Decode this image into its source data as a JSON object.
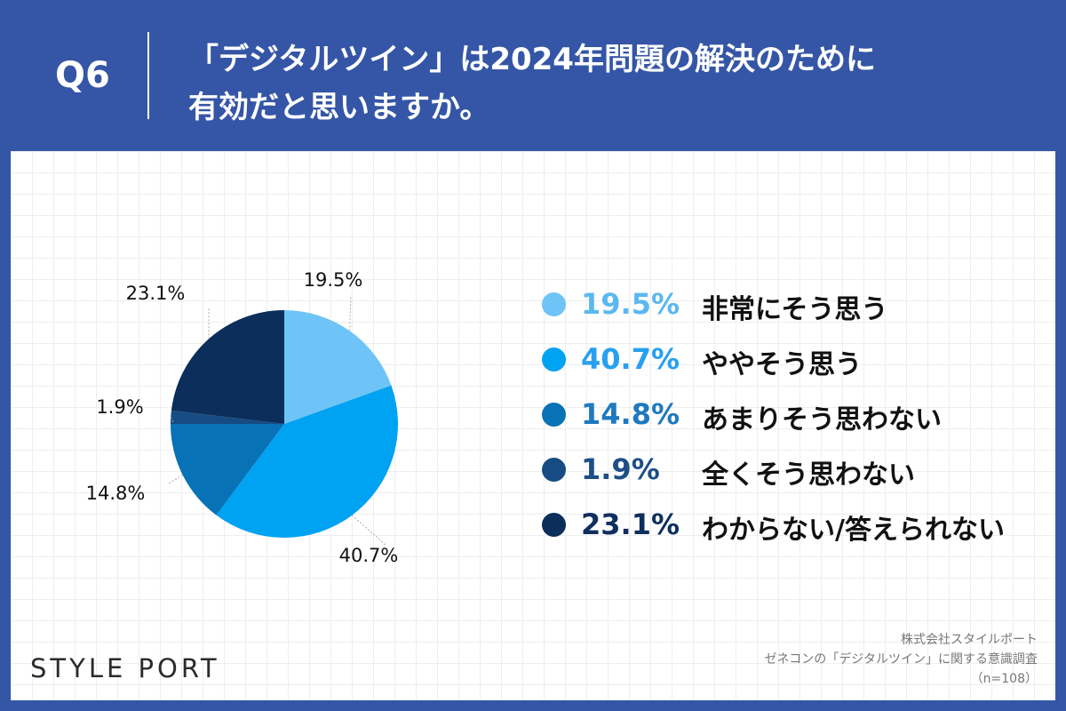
{
  "header": {
    "q_label": "Q6",
    "question_lines": [
      "「デジタルツイン」は2024年問題の解決のために",
      "有効だと思いますか。"
    ]
  },
  "colors": {
    "background": "#3556a6",
    "panel": "#ffffff"
  },
  "chart_data": {
    "type": "pie",
    "title": "",
    "slices": [
      {
        "label": "非常にそう思う",
        "value": 19.5,
        "display": "19.5%",
        "color": "#6ec4f7",
        "text_color": "#5bb8ef"
      },
      {
        "label": "ややそう思う",
        "value": 40.7,
        "display": "40.7%",
        "color": "#00a2f2",
        "text_color": "#27a0f0"
      },
      {
        "label": "あまりそう思わない",
        "value": 14.8,
        "display": "14.8%",
        "color": "#0772b6",
        "text_color": "#1f79bf"
      },
      {
        "label": "全くそう思わない",
        "value": 1.9,
        "display": "1.9%",
        "color": "#164c83",
        "text_color": "#1d4f86"
      },
      {
        "label": "わからない/答えられない",
        "value": 23.1,
        "display": "23.1%",
        "color": "#0b2e5a",
        "text_color": "#0f2f5e"
      }
    ],
    "start_angle": "12 o'clock",
    "direction": "clockwise",
    "legend_position": "right"
  },
  "branding": {
    "logo": "STYLE PORT"
  },
  "footer": {
    "lines": [
      "株式会社スタイルポート",
      "ゼネコンの「デジタルツイン」に関する意識調査",
      "（n=108）"
    ]
  }
}
